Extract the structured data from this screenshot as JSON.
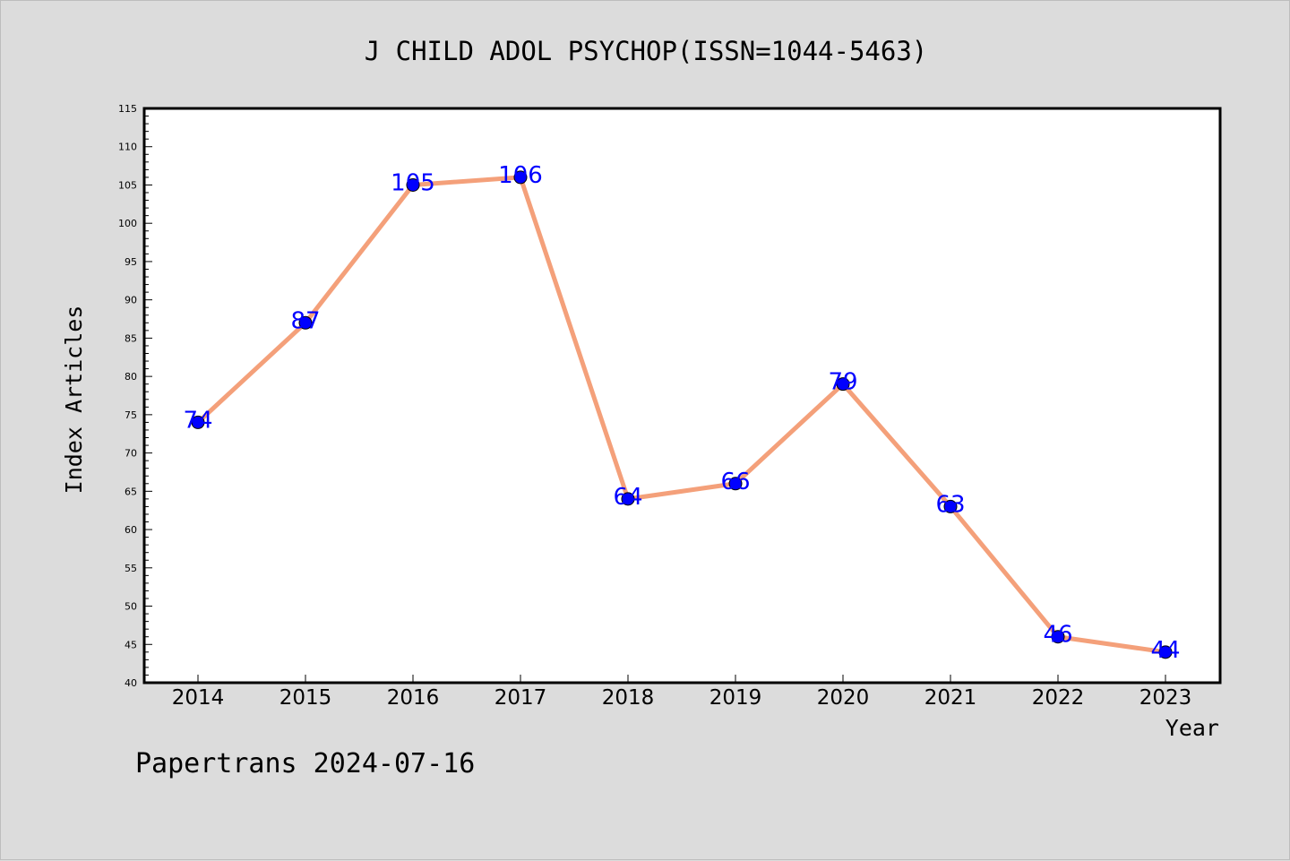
{
  "chart_data": {
    "type": "line",
    "title": "J CHILD ADOL PSYCHOP(ISSN=1044-5463)",
    "xlabel": "Year",
    "ylabel": "Index Articles",
    "categories": [
      "2014",
      "2015",
      "2016",
      "2017",
      "2018",
      "2019",
      "2020",
      "2021",
      "2022",
      "2023"
    ],
    "values": [
      74,
      87,
      105,
      106,
      64,
      66,
      79,
      63,
      46,
      44
    ],
    "ylim": [
      40,
      115
    ],
    "yticks": [
      40,
      45,
      50,
      55,
      60,
      65,
      70,
      75,
      80,
      85,
      90,
      95,
      100,
      105,
      110,
      115
    ],
    "grid": false,
    "show_data_labels": true,
    "colors": {
      "line": "#f4a07a",
      "marker": "#0000ff",
      "data_label": "#0000ff",
      "plot_bg": "#ffffff",
      "figure_bg": "#dcdcdc"
    }
  },
  "footer": "Papertrans 2024-07-16"
}
